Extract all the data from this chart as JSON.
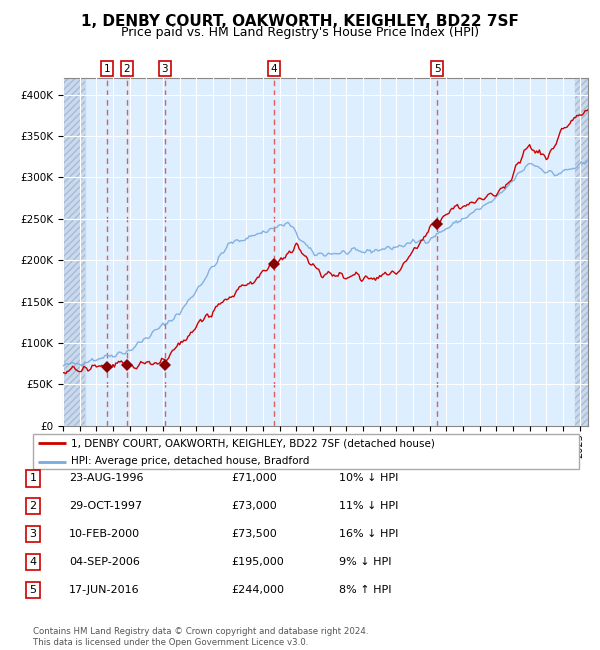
{
  "title": "1, DENBY COURT, OAKWORTH, KEIGHLEY, BD22 7SF",
  "subtitle": "Price paid vs. HM Land Registry's House Price Index (HPI)",
  "title_fontsize": 11,
  "subtitle_fontsize": 9,
  "bg_color": "#ddeeff",
  "hatch_color": "#c8daf0",
  "grid_color": "#ffffff",
  "price_line_color": "#cc0000",
  "hpi_line_color": "#7aaadd",
  "sale_marker_color": "#880000",
  "dashed_line_color": "#dd4444",
  "ylim": [
    0,
    420000
  ],
  "yticks": [
    0,
    50000,
    100000,
    150000,
    200000,
    250000,
    300000,
    350000,
    400000
  ],
  "ytick_labels": [
    "£0",
    "£50K",
    "£100K",
    "£150K",
    "£200K",
    "£250K",
    "£300K",
    "£350K",
    "£400K"
  ],
  "xlim_start": 1994.0,
  "xlim_end": 2025.5,
  "sale_dates": [
    1996.644,
    1997.831,
    2000.115,
    2006.674,
    2016.463
  ],
  "sale_prices": [
    71000,
    73000,
    73500,
    195000,
    244000
  ],
  "sale_labels": [
    "1",
    "2",
    "3",
    "4",
    "5"
  ],
  "legend_line1": "1, DENBY COURT, OAKWORTH, KEIGHLEY, BD22 7SF (detached house)",
  "legend_line2": "HPI: Average price, detached house, Bradford",
  "table_entries": [
    {
      "num": "1",
      "date": "23-AUG-1996",
      "price": "£71,000",
      "hpi": "10% ↓ HPI"
    },
    {
      "num": "2",
      "date": "29-OCT-1997",
      "price": "£73,000",
      "hpi": "11% ↓ HPI"
    },
    {
      "num": "3",
      "date": "10-FEB-2000",
      "price": "£73,500",
      "hpi": "16% ↓ HPI"
    },
    {
      "num": "4",
      "date": "04-SEP-2006",
      "price": "£195,000",
      "hpi": "9% ↓ HPI"
    },
    {
      "num": "5",
      "date": "17-JUN-2016",
      "price": "£244,000",
      "hpi": "8% ↑ HPI"
    }
  ],
  "footer": "Contains HM Land Registry data © Crown copyright and database right 2024.\nThis data is licensed under the Open Government Licence v3.0."
}
